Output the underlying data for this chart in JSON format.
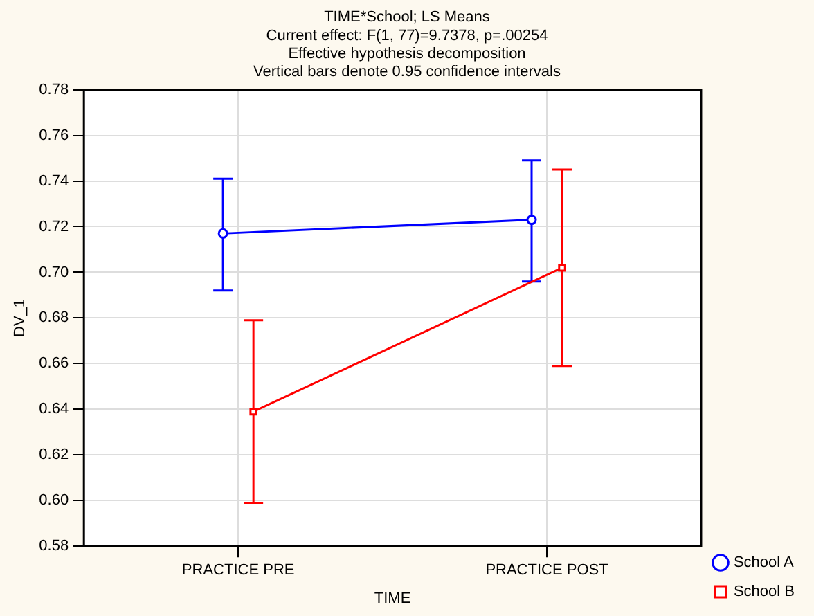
{
  "chart_data": {
    "type": "line",
    "title": "TIME*School; LS Means",
    "subtitle": "Current effect: F(1, 77)=9.7378, p=.00254",
    "annotations": [
      "Effective hypothesis decomposition",
      "Vertical bars denote 0.95 confidence intervals"
    ],
    "xlabel": "TIME",
    "ylabel": "DV_1",
    "categories": [
      "PRACTICE PRE",
      "PRACTICE POST"
    ],
    "series": [
      {
        "name": "School A",
        "color": "#0000ff",
        "marker": "circle",
        "values": [
          0.717,
          0.723
        ],
        "errors": [
          [
            0.692,
            0.741
          ],
          [
            0.696,
            0.749
          ]
        ]
      },
      {
        "name": "School B",
        "color": "#ff0000",
        "marker": "square",
        "values": [
          0.639,
          0.702
        ],
        "errors": [
          [
            0.599,
            0.679
          ],
          [
            0.659,
            0.745
          ]
        ]
      }
    ],
    "ylim": [
      0.58,
      0.78
    ],
    "yticks": [
      0.58,
      {
        "value": 0.6,
        "label": "0.60"
      },
      0.62,
      0.64,
      0.66,
      0.68,
      {
        "value": 0.7,
        "label": "0.70"
      },
      0.72,
      0.74,
      0.76,
      0.78
    ],
    "grid": true,
    "legend": "bottom right",
    "line_style": "solid"
  }
}
